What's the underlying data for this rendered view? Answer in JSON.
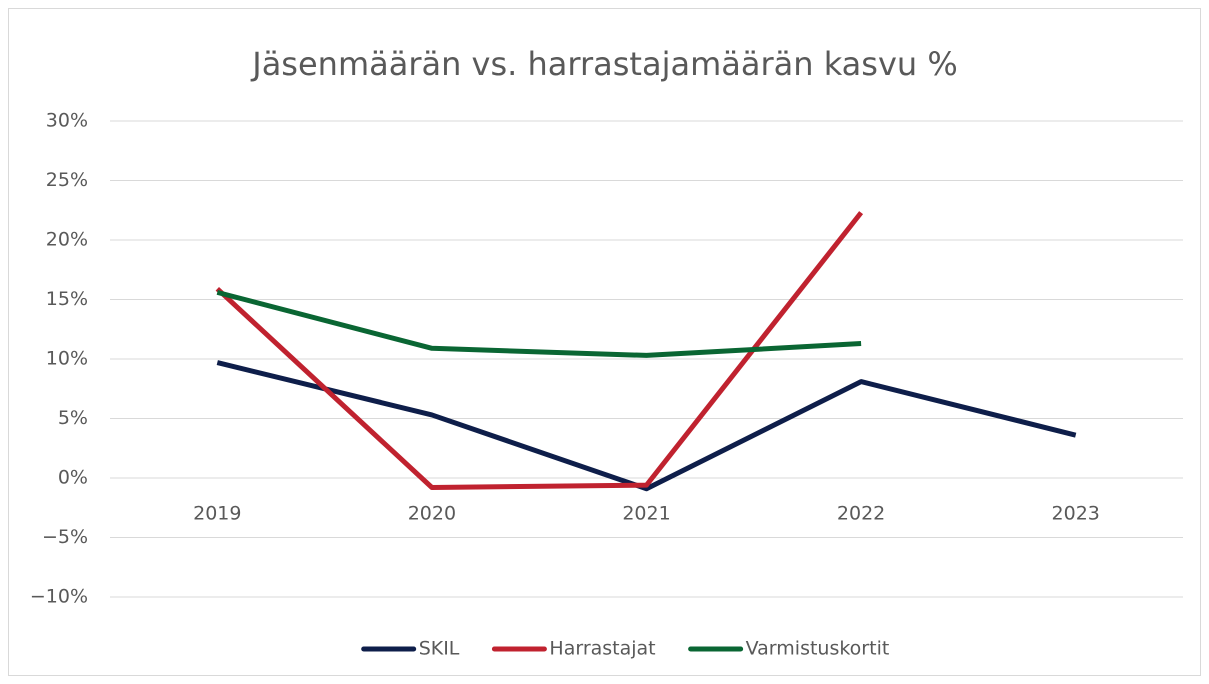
{
  "chart_data": {
    "type": "line",
    "title": "Jäsenmäärän vs. harrastajamäärän kasvu %",
    "categories": [
      "2019",
      "2020",
      "2021",
      "2022",
      "2023"
    ],
    "series": [
      {
        "name": "SKIL",
        "color": "#0e1e4a",
        "values": [
          9.7,
          5.3,
          -0.9,
          8.1,
          3.6
        ]
      },
      {
        "name": "Harrastajat",
        "color": "#c0222f",
        "values": [
          15.9,
          -0.8,
          -0.6,
          22.3,
          null
        ]
      },
      {
        "name": "Varmistuskortit",
        "color": "#0a6633",
        "values": [
          15.6,
          10.9,
          10.3,
          11.3,
          null
        ]
      }
    ],
    "ylim": [
      -10,
      30
    ],
    "yticks": [
      {
        "value": -10,
        "label": "−10%"
      },
      {
        "value": -5,
        "label": "−5%"
      },
      {
        "value": 0,
        "label": "0%"
      },
      {
        "value": 5,
        "label": "5%"
      },
      {
        "value": 10,
        "label": "10%"
      },
      {
        "value": 15,
        "label": "15%"
      },
      {
        "value": 20,
        "label": "20%"
      },
      {
        "value": 25,
        "label": "25%"
      },
      {
        "value": 30,
        "label": "30%"
      }
    ],
    "grid": true,
    "legend": "bottom"
  }
}
